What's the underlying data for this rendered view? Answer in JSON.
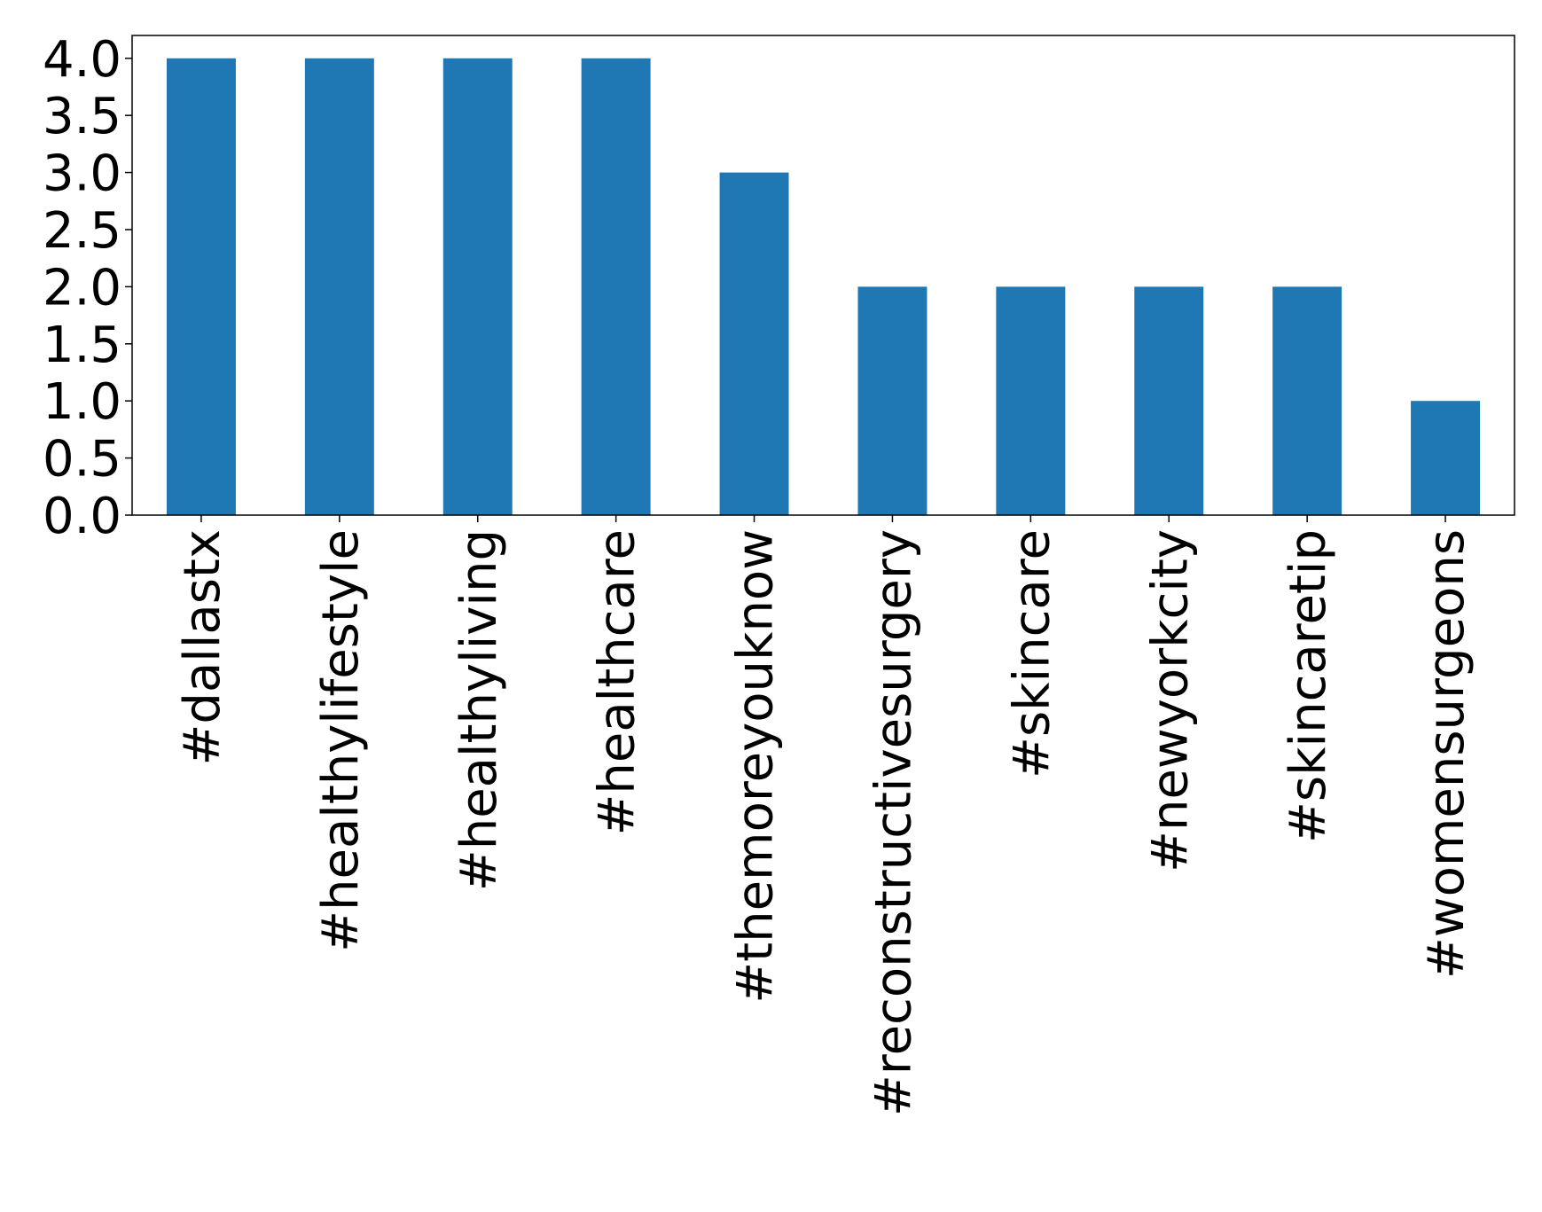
{
  "chart_data": {
    "type": "bar",
    "categories": [
      "#dallastx",
      "#healthylifestyle",
      "#healthyliving",
      "#healthcare",
      "#themoreyouknow",
      "#reconstructivesurgery",
      "#skincare",
      "#newyorkcity",
      "#skincaretip",
      "#womensurgeons"
    ],
    "values": [
      4,
      4,
      4,
      4,
      3,
      2,
      2,
      2,
      2,
      1
    ],
    "color": "#1f77b4",
    "ylim": [
      0,
      4.2
    ],
    "yticks": [
      {
        "value": 0,
        "label": "0.0"
      },
      {
        "value": 0.5,
        "label": "0.5"
      },
      {
        "value": 1,
        "label": "1.0"
      },
      {
        "value": 1.5,
        "label": "1.5"
      },
      {
        "value": 2,
        "label": "2.0"
      },
      {
        "value": 2.5,
        "label": "2.5"
      },
      {
        "value": 3,
        "label": "3.0"
      },
      {
        "value": 3.5,
        "label": "3.5"
      },
      {
        "value": 4,
        "label": "4.0"
      }
    ],
    "grid": false
  }
}
